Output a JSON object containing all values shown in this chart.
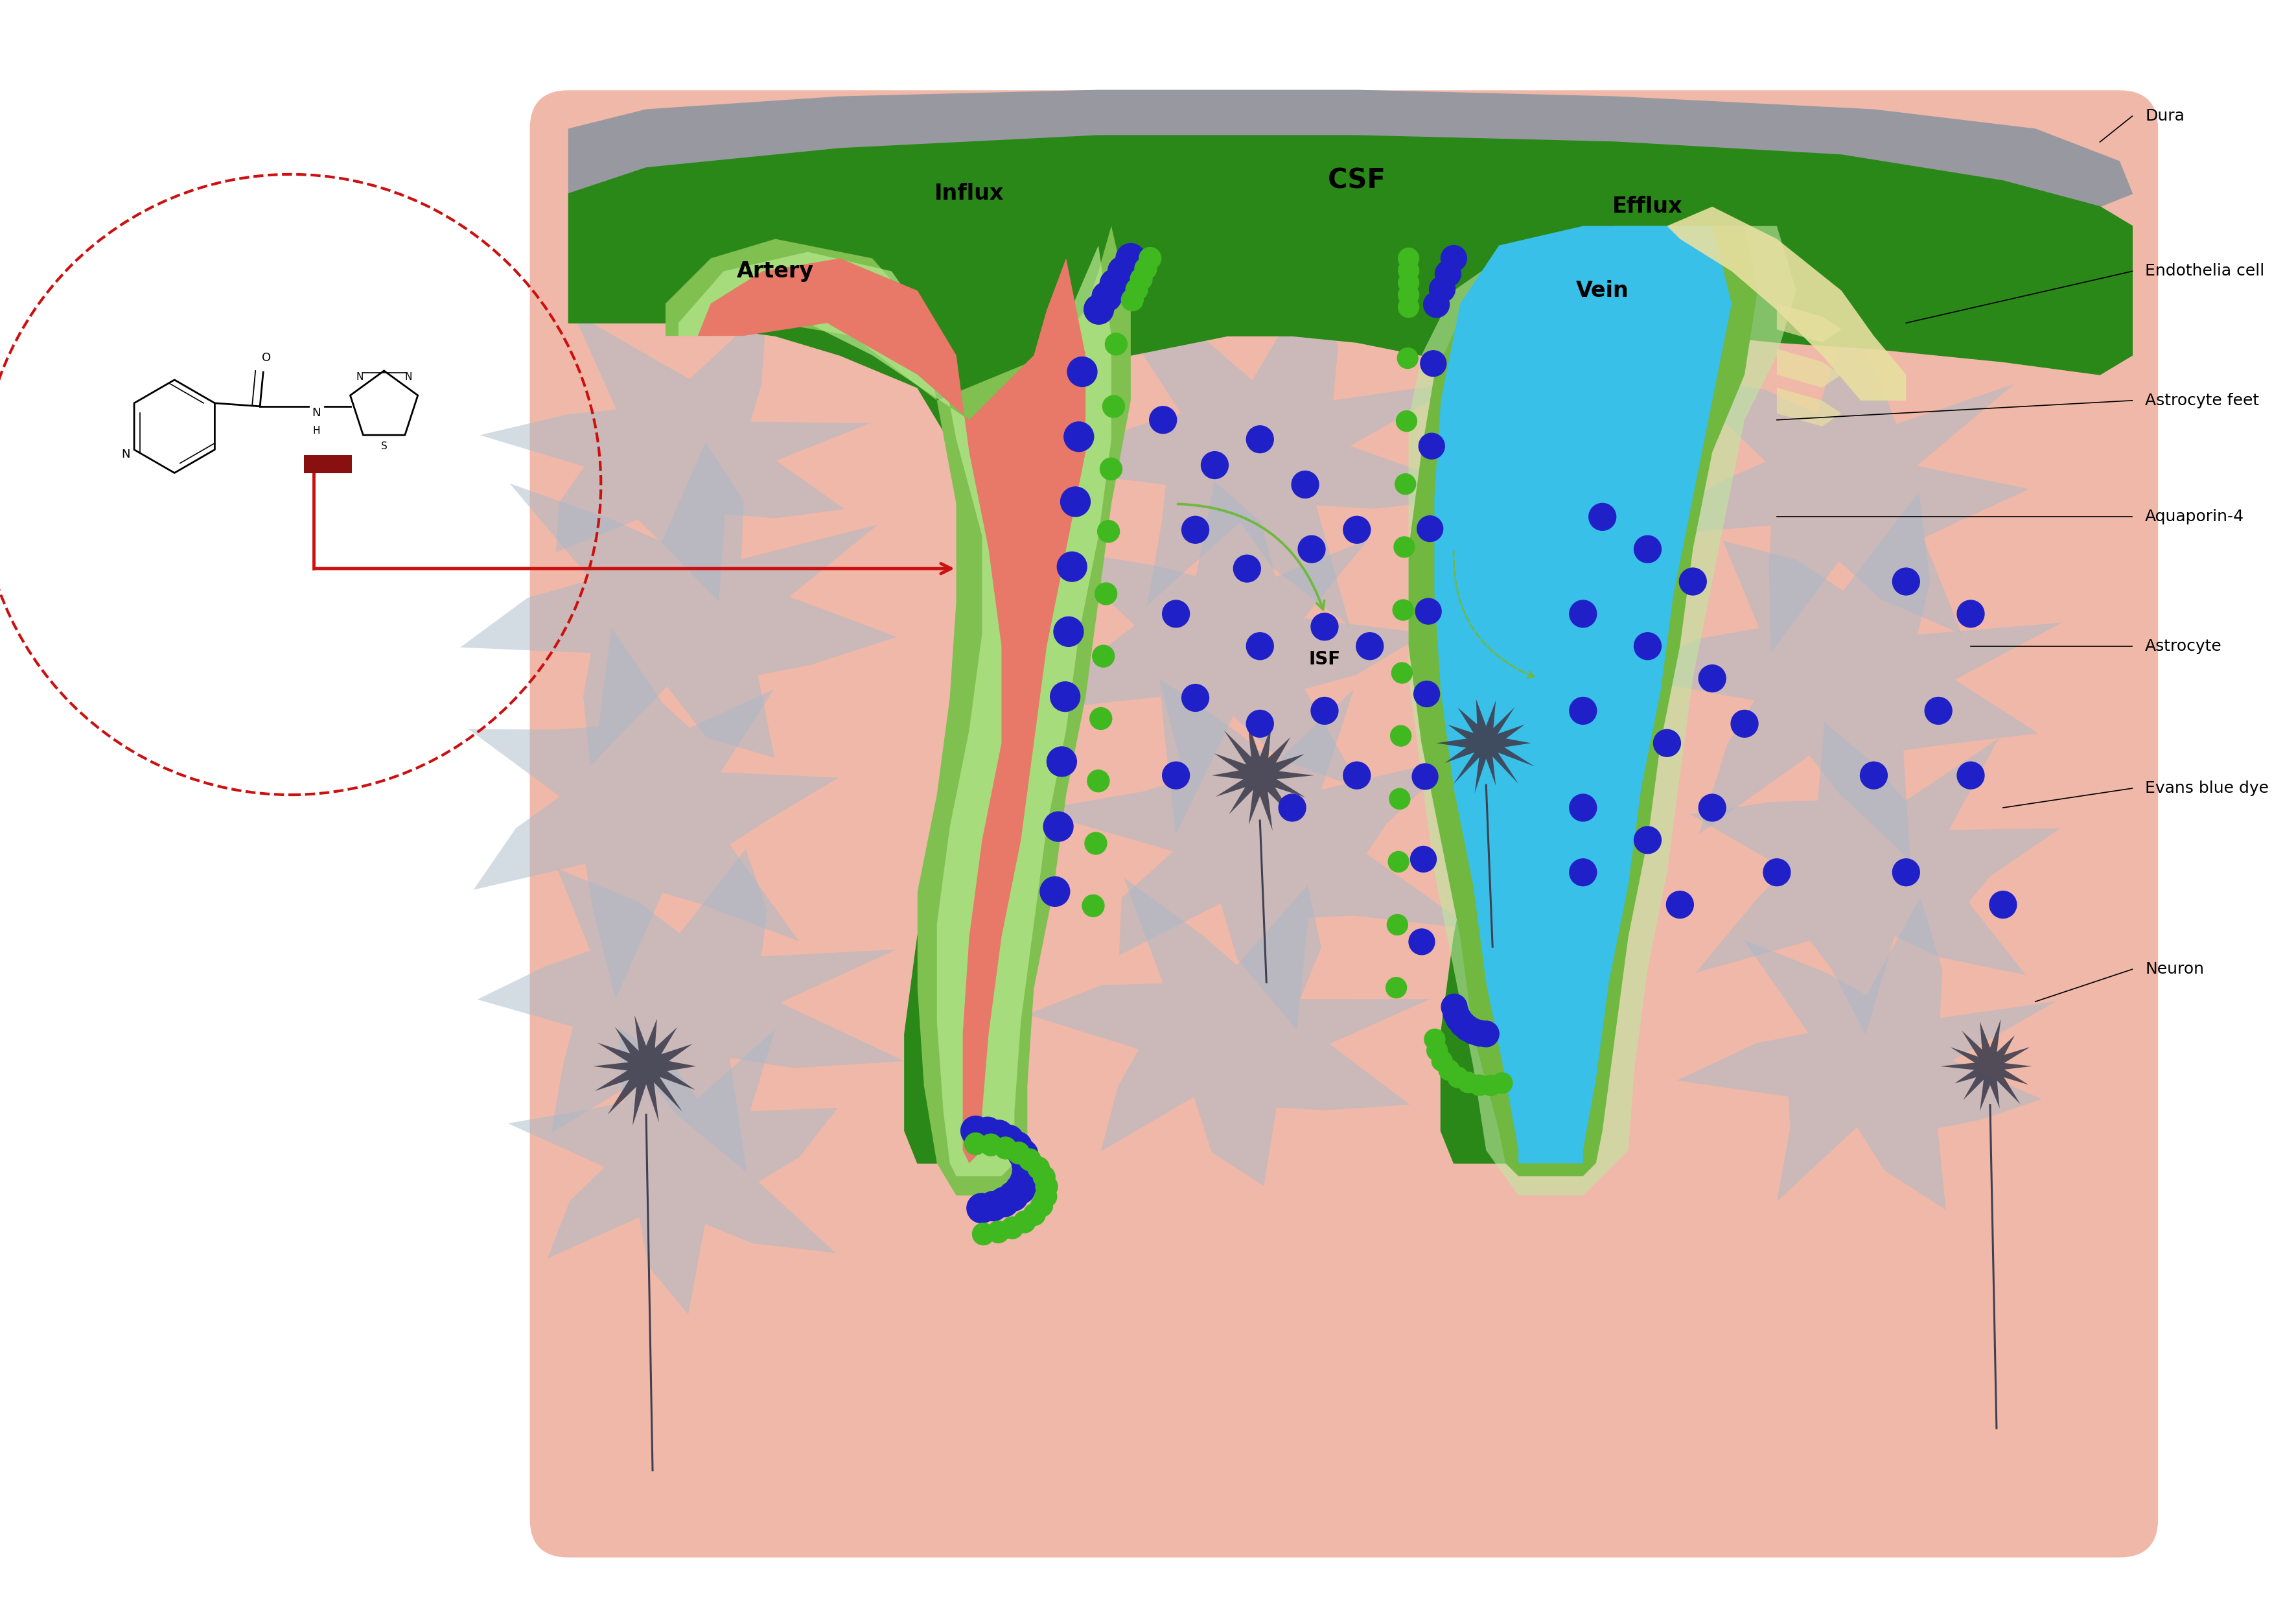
{
  "colors": {
    "bg_white": "#FFFFFF",
    "tissue_pink": "#F0B8A8",
    "dura_gray": "#9898A0",
    "csf_green": "#2A8818",
    "artery_red": "#E87868",
    "artery_sheath": "#80C050",
    "artery_sheath_light": "#B8E890",
    "vein_blue": "#38C0E8",
    "vein_sheath": "#70B840",
    "vein_sheath_light": "#C0E8A0",
    "endothelia_cream": "#E8E0A0",
    "astrocyte_gray": "#A8B8C8",
    "neuron_dark": "#404050",
    "blue_dot": "#2020C8",
    "green_dot": "#40B820",
    "red_dashed": "#CC1010",
    "red_arrow": "#CC1010",
    "dark_red_bar": "#881010",
    "line_black": "#000000"
  },
  "labels": {
    "dura": "Dura",
    "csf": "CSF",
    "influx": "Influx",
    "efflux": "Efflux",
    "artery": "Artery",
    "vein": "Vein",
    "endothelia_cell": "Endothelia cell",
    "astrocyte_feet": "Astrocyte feet",
    "aquaporin4": "Aquaporin-4",
    "astrocyte": "Astrocyte",
    "evans_blue_dye": "Evans blue dye",
    "neuron": "Neuron",
    "isf": "ISF"
  }
}
